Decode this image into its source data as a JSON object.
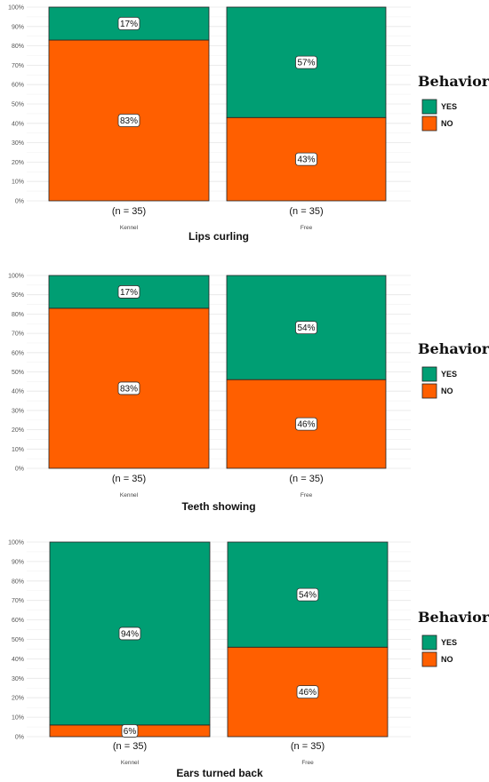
{
  "chart_data": [
    {
      "type": "bar",
      "stacked": true,
      "title": "Lips curling",
      "categories": [
        "Kennel",
        "Free"
      ],
      "sample_sizes": [
        "(n = 35)",
        "(n = 35)"
      ],
      "series": [
        {
          "name": "YES",
          "color": "#009E73",
          "values": [
            17,
            57
          ],
          "labels": [
            "17%",
            "57%"
          ]
        },
        {
          "name": "NO",
          "color": "#FF5F00",
          "values": [
            83,
            43
          ],
          "labels": [
            "83%",
            "43%"
          ]
        }
      ],
      "ylim": [
        0,
        100
      ],
      "yticks": [
        "0%",
        "10%",
        "20%",
        "30%",
        "40%",
        "50%",
        "60%",
        "70%",
        "80%",
        "90%",
        "100%"
      ],
      "legend": {
        "title": "Behavior",
        "position": "right"
      },
      "grid": true
    },
    {
      "type": "bar",
      "stacked": true,
      "title": "Teeth showing",
      "categories": [
        "Kennel",
        "Free"
      ],
      "sample_sizes": [
        "(n = 35)",
        "(n = 35)"
      ],
      "series": [
        {
          "name": "YES",
          "color": "#009E73",
          "values": [
            17,
            54
          ],
          "labels": [
            "17%",
            "54%"
          ]
        },
        {
          "name": "NO",
          "color": "#FF5F00",
          "values": [
            83,
            46
          ],
          "labels": [
            "83%",
            "46%"
          ]
        }
      ],
      "ylim": [
        0,
        100
      ],
      "yticks": [
        "0%",
        "10%",
        "20%",
        "30%",
        "40%",
        "50%",
        "60%",
        "70%",
        "80%",
        "90%",
        "100%"
      ],
      "legend": {
        "title": "Behavior",
        "position": "right"
      },
      "grid": true
    },
    {
      "type": "bar",
      "stacked": true,
      "title": "Ears turned back",
      "categories": [
        "Kennel",
        "Free"
      ],
      "sample_sizes": [
        "(n = 35)",
        "(n = 35)"
      ],
      "series": [
        {
          "name": "YES",
          "color": "#009E73",
          "values": [
            94,
            54
          ],
          "labels": [
            "94%",
            "54%"
          ]
        },
        {
          "name": "NO",
          "color": "#FF5F00",
          "values": [
            6,
            46
          ],
          "labels": [
            "6%",
            "46%"
          ]
        }
      ],
      "ylim": [
        0,
        100
      ],
      "yticks": [
        "0%",
        "10%",
        "20%",
        "30%",
        "40%",
        "50%",
        "60%",
        "70%",
        "80%",
        "90%",
        "100%"
      ],
      "legend": {
        "title": "Behavior",
        "position": "right"
      },
      "grid": true
    }
  ]
}
